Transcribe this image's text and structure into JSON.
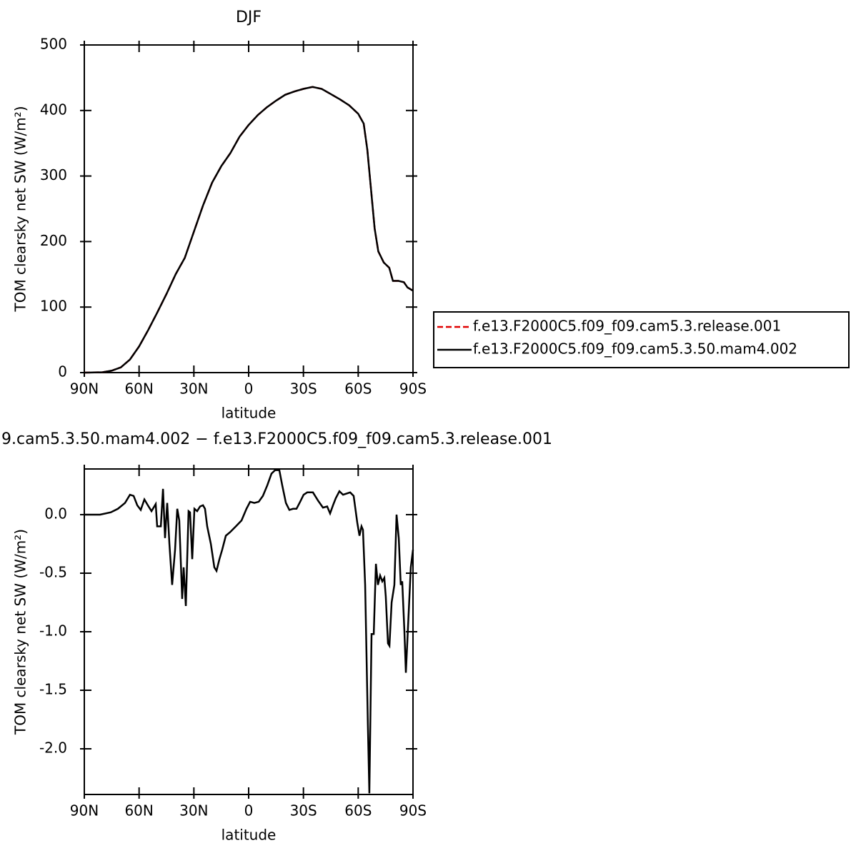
{
  "chart_data": [
    {
      "type": "line",
      "title": "DJF",
      "xlabel": "latitude",
      "ylabel": "TOM clearsky net SW (W/m²)",
      "x": [
        90,
        80,
        75,
        70,
        65,
        60,
        55,
        50,
        45,
        40,
        35,
        30,
        25,
        20,
        15,
        10,
        5,
        0,
        -5,
        -10,
        -15,
        -20,
        -25,
        -30,
        -35,
        -40,
        -45,
        -50,
        -55,
        -60,
        -63,
        -65,
        -67,
        -69,
        -71,
        -74,
        -77,
        -79,
        -82,
        -85,
        -87,
        -90
      ],
      "series": [
        {
          "name": "f.e13.F2000C5.f09_f09.cam5.3.release.001",
          "color": "#e00000",
          "linestyle": "dashed",
          "values": [
            0,
            0.5,
            3,
            8,
            20,
            40,
            65,
            92,
            120,
            150,
            175,
            215,
            255,
            290,
            315,
            335,
            360,
            378,
            393,
            405,
            415,
            424,
            429,
            433,
            436,
            433,
            425,
            417,
            408,
            395,
            380,
            340,
            280,
            220,
            185,
            168,
            160,
            140,
            140,
            138,
            130,
            125
          ]
        },
        {
          "name": "f.e13.F2000C5.f09_f09.cam5.3.50.mam4.002",
          "color": "#000000",
          "linestyle": "solid",
          "values": [
            0,
            0.5,
            3,
            8,
            20,
            40,
            65,
            92,
            120,
            150,
            175,
            215,
            255,
            290,
            315,
            335,
            360,
            378,
            393,
            405,
            415,
            424,
            429,
            433,
            436,
            433,
            425,
            417,
            408,
            395,
            380,
            340,
            280,
            220,
            185,
            168,
            160,
            140,
            140,
            138,
            130,
            125
          ]
        }
      ],
      "xlim": [
        90,
        -90
      ],
      "xticks": [
        {
          "value": 90,
          "label": "90N"
        },
        {
          "value": 60,
          "label": "60N"
        },
        {
          "value": 30,
          "label": "30N"
        },
        0,
        {
          "value": -30,
          "label": "30S"
        },
        {
          "value": -60,
          "label": "60S"
        },
        {
          "value": -90,
          "label": "90S"
        }
      ],
      "ylim": [
        0,
        500
      ],
      "yticks": [
        0,
        100,
        200,
        300,
        400,
        500
      ],
      "legend": "right"
    },
    {
      "type": "line",
      "title": "9.cam5.3.50.mam4.002 − f.e13.F2000C5.f09_f09.cam5.3.release.001",
      "xlabel": "latitude",
      "ylabel": "TOM clearsky net SW (W/m²)",
      "x": [
        90,
        81.4,
        75.5,
        71.6,
        67.7,
        65.0,
        63.0,
        61.0,
        59.1,
        57.1,
        55.2,
        53.2,
        50.9,
        50.1,
        48.1,
        46.9,
        45.8,
        44.6,
        43.4,
        41.9,
        40.3,
        39.1,
        38.0,
        36.4,
        35.6,
        34.4,
        32.9,
        32.1,
        30.9,
        29.7,
        28.2,
        26.6,
        25.0,
        23.9,
        22.7,
        20.7,
        18.8,
        17.6,
        16.0,
        14.5,
        12.5,
        10.2,
        7.0,
        3.9,
        1.2,
        -0.8,
        -3.1,
        -5.5,
        -7.8,
        -10.2,
        -12.5,
        -14.5,
        -16.8,
        -18.4,
        -20.4,
        -22.3,
        -24.3,
        -26.2,
        -28.2,
        -30.1,
        -32.1,
        -35.2,
        -38.0,
        -40.7,
        -43.0,
        -44.6,
        -46.2,
        -47.7,
        -49.7,
        -51.7,
        -55.6,
        -57.5,
        -59.5,
        -60.7,
        -61.8,
        -62.6,
        -63.8,
        -65.3,
        -66.1,
        -67.3,
        -68.5,
        -69.7,
        -70.8,
        -72.0,
        -73.2,
        -74.3,
        -75.1,
        -76.3,
        -77.1,
        -78.3,
        -79.8,
        -81.0,
        -82.2,
        -83.3,
        -84.1,
        -85.3,
        -86.1,
        -87.3,
        -88.8,
        -90
      ],
      "values": [
        0,
        0,
        0.02,
        0.05,
        0.1,
        0.17,
        0.16,
        0.08,
        0.04,
        0.13,
        0.08,
        0.03,
        0.09,
        -0.1,
        -0.1,
        0.22,
        -0.2,
        0.1,
        -0.25,
        -0.6,
        -0.3,
        0.05,
        -0.05,
        -0.72,
        -0.45,
        -0.78,
        0.03,
        0.02,
        -0.38,
        0.05,
        0.03,
        0.07,
        0.08,
        0.05,
        -0.1,
        -0.25,
        -0.45,
        -0.48,
        -0.38,
        -0.3,
        -0.18,
        -0.15,
        -0.1,
        -0.05,
        0.05,
        0.11,
        0.1,
        0.11,
        0.16,
        0.25,
        0.35,
        0.38,
        0.38,
        0.25,
        0.1,
        0.04,
        0.05,
        0.05,
        0.11,
        0.17,
        0.19,
        0.19,
        0.12,
        0.06,
        0.07,
        0.01,
        0.08,
        0.14,
        0.2,
        0.17,
        0.19,
        0.16,
        -0.07,
        -0.18,
        -0.1,
        -0.13,
        -0.6,
        -1.8,
        -2.38,
        -1.02,
        -1.02,
        -0.42,
        -0.6,
        -0.52,
        -0.57,
        -0.54,
        -0.7,
        -1.1,
        -1.12,
        -0.75,
        -0.6,
        0.0,
        -0.2,
        -0.6,
        -0.57,
        -1.0,
        -1.35,
        -0.95,
        -0.45,
        -0.3
      ],
      "color": "#000000",
      "xlim": [
        90,
        -90
      ],
      "xticks": [
        {
          "value": 90,
          "label": "90N"
        },
        {
          "value": 60,
          "label": "60N"
        },
        {
          "value": 30,
          "label": "30N"
        },
        0,
        {
          "value": -30,
          "label": "30S"
        },
        {
          "value": -60,
          "label": "60S"
        },
        {
          "value": -90,
          "label": "90S"
        }
      ],
      "ylim": [
        -2.39,
        0.39
      ],
      "yticks": [
        {
          "value": -2,
          "label": "-2.0"
        },
        -1.5,
        {
          "value": -1,
          "label": "-1.0"
        },
        -0.5,
        {
          "value": 0,
          "label": "0.0"
        }
      ]
    }
  ]
}
